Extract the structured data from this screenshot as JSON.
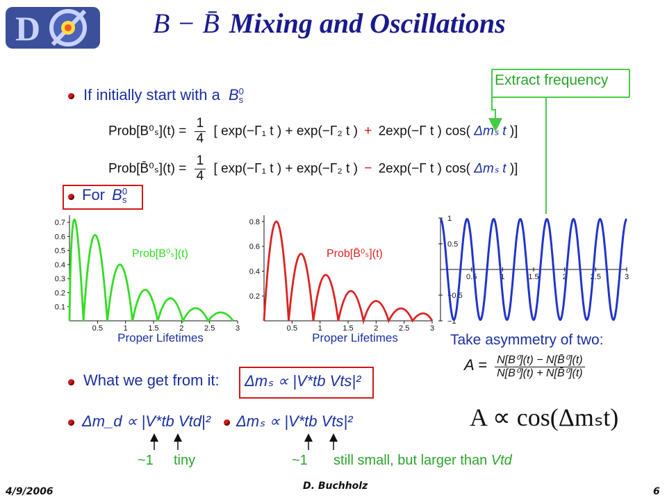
{
  "header": {
    "logo_text": "DØ",
    "title_math": "B − B̄",
    "title_text": "Mixing and Oscillations"
  },
  "bullet1": {
    "label": "If initially start with a",
    "particle": "B",
    "sup": "0",
    "sub": "s"
  },
  "callout_top": {
    "label": "Extract frequency"
  },
  "eq1": {
    "lhs": "Prob[B⁰ₛ](t) =",
    "frac_num": "1",
    "frac_den": "4",
    "term1": "[ exp(−Γ₁ t )  + exp(−Γ₂ t )",
    "sign": "+",
    "term2": "2exp(−Γ t ) cos(",
    "dm": "Δmₛ t",
    "close": ")]"
  },
  "eq2": {
    "lhs": "Prob[B̄⁰ₛ](t) =",
    "frac_num": "1",
    "frac_den": "4",
    "term1": "[ exp(−Γ₁ t )  + exp(−Γ₂ t )",
    "sign": "−",
    "term2": "2exp(−Γ t ) cos(",
    "dm": "Δmₛ t",
    "close": ")]"
  },
  "bullet2": {
    "label": "For",
    "particle": "B",
    "sup": "0",
    "sub": "s"
  },
  "chart_data": [
    {
      "type": "line",
      "title": "Prob[B⁰ₛ](t)",
      "xlabel": "Proper Lifetimes",
      "ylabel": "",
      "xlim": [
        0,
        3
      ],
      "ylim": [
        0,
        0.75
      ],
      "xticks": [
        "0.5",
        "1",
        "1.5",
        "2",
        "2.5",
        "3"
      ],
      "yticks": [
        "0.1",
        "0.2",
        "0.3",
        "0.4",
        "0.5",
        "0.6",
        "0.7"
      ],
      "color": "#33dd22",
      "peaks": [
        [
          0.05,
          0.72
        ],
        [
          0.45,
          0.61
        ],
        [
          0.9,
          0.4
        ],
        [
          1.35,
          0.22
        ],
        [
          1.8,
          0.16
        ],
        [
          2.25,
          0.09
        ],
        [
          2.7,
          0.06
        ]
      ]
    },
    {
      "type": "line",
      "title": "Prob[B̄⁰ₛ](t)",
      "xlabel": "Proper Lifetimes",
      "ylabel": "",
      "xlim": [
        0,
        3
      ],
      "ylim": [
        0,
        0.85
      ],
      "xticks": [
        "0.5",
        "1",
        "1.5",
        "2",
        "2.5",
        "3"
      ],
      "yticks": [
        "0.2",
        "0.4",
        "0.6",
        "0.8"
      ],
      "color": "#dd2222",
      "peaks": [
        [
          0.22,
          0.8
        ],
        [
          0.66,
          0.54
        ],
        [
          1.1,
          0.37
        ],
        [
          1.55,
          0.24
        ],
        [
          2.0,
          0.16
        ],
        [
          2.45,
          0.1
        ],
        [
          2.85,
          0.06
        ]
      ]
    },
    {
      "type": "line",
      "title": "",
      "xlabel": "",
      "ylabel": "",
      "xlim": [
        0,
        3
      ],
      "ylim": [
        -1,
        1
      ],
      "xticks": [
        "0.5",
        "1",
        "1.5",
        "2",
        "2.5",
        "3"
      ],
      "yticks": [
        "1",
        "0.5",
        "−0.5",
        "−1"
      ],
      "color": "#2233cc",
      "cycles": 7
    }
  ],
  "asym": {
    "label": "Take asymmetry of two:",
    "A": "A =",
    "num": "N[B⁰](t) − N[B̄⁰](t)",
    "den": "N[B⁰](t) + N[B̄⁰](t)",
    "prop": "A ∝ cos(Δmₛt)"
  },
  "bullet3": {
    "label": "What we get from it:",
    "formula": "Δmₛ ∝  |V*tb Vts|²"
  },
  "bullet4": {
    "formula": "Δm_d ∝  |V*tb Vtd|²"
  },
  "bullet5": {
    "formula": "Δmₛ ∝  |V*tb Vts|²"
  },
  "annot": {
    "a1": "~1",
    "a2": "tiny",
    "a3": "~1",
    "a4": "still small, but larger than",
    "a4_v": "Vtd"
  },
  "footer": {
    "date": "4/9/2006",
    "author": "D. Buchholz",
    "page": "6"
  }
}
